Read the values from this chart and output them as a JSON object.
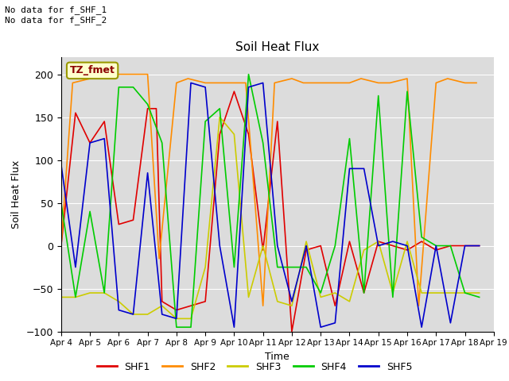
{
  "title": "Soil Heat Flux",
  "ylabel": "Soil Heat Flux",
  "xlabel": "Time",
  "annotation_top": "No data for f_SHF_1\nNo data for f_SHF_2",
  "box_label": "TZ_fmet",
  "ylim": [
    -100,
    220
  ],
  "yticks": [
    -100,
    -50,
    0,
    50,
    100,
    150,
    200
  ],
  "plot_bg": "#dcdcdc",
  "fig_bg": "#ffffff",
  "series_colors": {
    "SHF1": "#e00000",
    "SHF2": "#ff8c00",
    "SHF3": "#cccc00",
    "SHF4": "#00cc00",
    "SHF5": "#0000cc"
  },
  "xtick_labels": [
    "Apr 4",
    "Apr 5",
    "Apr 6",
    "Apr 7",
    "Apr 8",
    "Apr 9",
    "Apr 10",
    "Apr 11",
    "Apr 12",
    "Apr 13",
    "Apr 14",
    "Apr 15",
    "Apr 16",
    "Apr 17",
    "Apr 18",
    "Apr 19"
  ],
  "SHF1_x": [
    4,
    4.5,
    5,
    5.5,
    6,
    6.5,
    7,
    7.3,
    7.5,
    8,
    8.5,
    9,
    9.5,
    10,
    10.5,
    11,
    11.5,
    12,
    12.5,
    13,
    13.5,
    14,
    14.5,
    15,
    15.5,
    16,
    16.5,
    17,
    17.5,
    18,
    18.5
  ],
  "SHF1_y": [
    0,
    155,
    120,
    145,
    25,
    30,
    160,
    160,
    -65,
    -75,
    -70,
    -65,
    130,
    180,
    130,
    -5,
    145,
    -100,
    -5,
    0,
    -70,
    5,
    -55,
    5,
    0,
    -5,
    5,
    -5,
    0,
    0,
    0
  ],
  "SHF2_x": [
    4,
    4.4,
    5,
    5.4,
    6,
    6.4,
    7,
    7.4,
    8,
    8.4,
    9,
    9.4,
    10,
    10.4,
    11,
    11.4,
    12,
    12.4,
    13,
    13.4,
    14,
    14.4,
    15,
    15.4,
    16,
    16.4,
    17,
    17.4,
    18,
    18.4
  ],
  "SHF2_y": [
    0,
    190,
    195,
    195,
    200,
    200,
    200,
    -15,
    190,
    195,
    190,
    190,
    190,
    190,
    -70,
    190,
    195,
    190,
    190,
    190,
    190,
    195,
    190,
    190,
    195,
    -70,
    190,
    195,
    190,
    190
  ],
  "SHF3_x": [
    4,
    4.5,
    5,
    5.5,
    6,
    6.5,
    7,
    7.5,
    8,
    8.5,
    9,
    9.5,
    10,
    10.5,
    11,
    11.5,
    12,
    12.5,
    13,
    13.5,
    14,
    14.5,
    15,
    15.5,
    16,
    16.5,
    17,
    17.5,
    18,
    18.5
  ],
  "SHF3_y": [
    -60,
    -60,
    -55,
    -55,
    -65,
    -80,
    -80,
    -70,
    -85,
    -85,
    -25,
    150,
    130,
    -60,
    0,
    -65,
    -70,
    5,
    -60,
    -55,
    -65,
    -5,
    5,
    -55,
    5,
    -55,
    -55,
    -55,
    -55,
    -55
  ],
  "SHF4_x": [
    4,
    4.5,
    5,
    5.5,
    6,
    6.5,
    7,
    7.5,
    8,
    8.5,
    9,
    9.5,
    10,
    10.5,
    11,
    11.5,
    12,
    12.5,
    13,
    13.5,
    14,
    14.5,
    15,
    15.5,
    16,
    16.5,
    17,
    17.5,
    18,
    18.5
  ],
  "SHF4_y": [
    50,
    -60,
    40,
    -55,
    185,
    185,
    165,
    120,
    -95,
    -95,
    145,
    160,
    -25,
    200,
    120,
    -25,
    -25,
    -25,
    -55,
    0,
    125,
    -55,
    175,
    -60,
    180,
    10,
    0,
    0,
    -55,
    -60
  ],
  "SHF5_x": [
    4,
    4.5,
    5,
    5.5,
    6,
    6.5,
    7,
    7.5,
    8,
    8.5,
    9,
    9.5,
    10,
    10.5,
    11,
    11.5,
    12,
    12.5,
    13,
    13.5,
    14,
    14.5,
    15,
    15.5,
    16,
    16.5,
    17,
    17.5,
    18,
    18.5
  ],
  "SHF5_y": [
    95,
    -25,
    120,
    125,
    -75,
    -80,
    85,
    -80,
    -85,
    190,
    185,
    0,
    -95,
    185,
    190,
    0,
    -65,
    0,
    -95,
    -90,
    90,
    90,
    0,
    5,
    0,
    -95,
    0,
    -90,
    0,
    0
  ]
}
